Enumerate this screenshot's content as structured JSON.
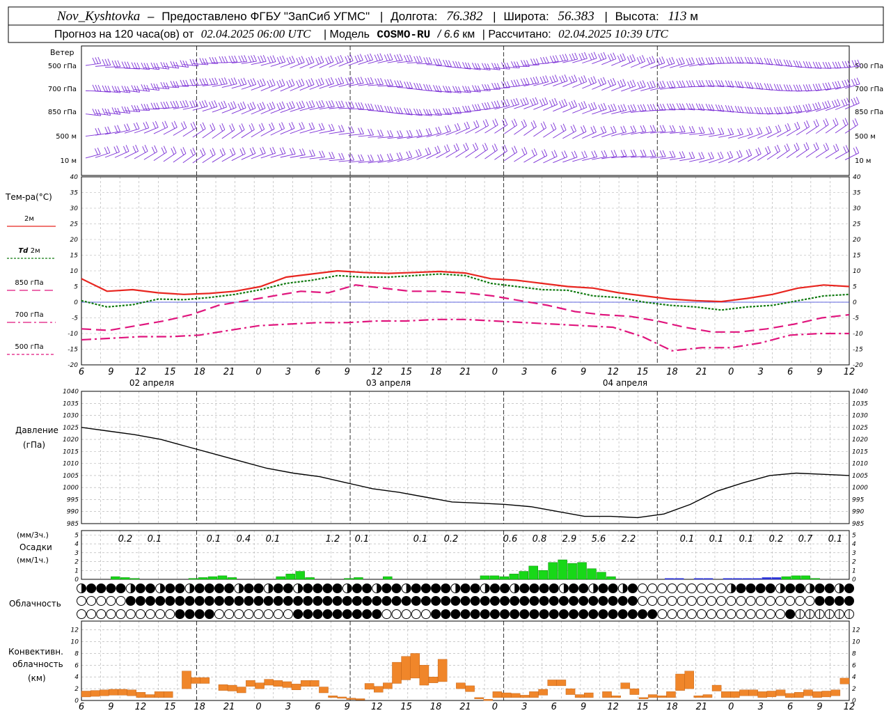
{
  "header": {
    "station": "Nov_Kyshtovka",
    "provider": "Предоставлено ФГБУ \"ЗапСиб УГМС\"",
    "lon_label": "Долгота:",
    "lon_value": "76.382",
    "lat_label": "Широта:",
    "lat_value": "56.383",
    "alt_label": "Высота:",
    "alt_value": "113",
    "alt_unit": "м",
    "forecast_text": "Прогноз на 120 часа(ов) от",
    "forecast_from": "02.04.2025 06:00 UTC",
    "model_label": "| Модель",
    "model_name": "COSMO-RU",
    "model_res": "/ 6.6",
    "model_res_unit": "км",
    "calc_label": "| Рассчитано:",
    "calc_time": "02.04.2025 10:39 UTC"
  },
  "wind": {
    "title": "Ветер",
    "levels": [
      "500 гПа",
      "700 гПа",
      "850 гПа",
      "500 м",
      "10 м"
    ],
    "color": "#7b2fd6"
  },
  "temperature": {
    "title": "Тем-ра(°C)",
    "legend": [
      {
        "label": "2м",
        "italic": "",
        "color": "#e8251f",
        "dash": ""
      },
      {
        "label": "2м",
        "italic": "Td",
        "color": "#107a10",
        "dash": "3,2"
      },
      {
        "label": "850 гПа",
        "italic": "",
        "color": "#e0157d",
        "dash": "12,6"
      },
      {
        "label": "700 гПа",
        "italic": "",
        "color": "#e0157d",
        "dash": "12,4,3,4"
      },
      {
        "label": "500 гПа",
        "italic": "",
        "color": "#e0157d",
        "dash": "4,3"
      }
    ],
    "yticks": [
      "40",
      "35",
      "30",
      "25",
      "20",
      "15",
      "10",
      "5",
      "0",
      "-5",
      "-10",
      "-15",
      "-20"
    ]
  },
  "time_axis": {
    "hour_labels": [
      "6",
      "9",
      "12",
      "15",
      "18",
      "21",
      "0",
      "3",
      "6",
      "9",
      "12",
      "15",
      "18",
      "21",
      "0",
      "3",
      "6",
      "9",
      "12",
      "15",
      "18",
      "21",
      "0",
      "3",
      "6",
      "9",
      "12"
    ],
    "dates": [
      "02 апреля",
      "03 апреля",
      "04 апреля"
    ]
  },
  "pressure": {
    "title": "Давление",
    "unit": "(гПа)",
    "yticks": [
      "1040",
      "1035",
      "1030",
      "1025",
      "1020",
      "1015",
      "1010",
      "1005",
      "1000",
      "995",
      "990",
      "985"
    ]
  },
  "precip": {
    "unit3h": "(мм/3ч.)",
    "title": "Осадки",
    "unit1h": "(мм/1ч.)",
    "yticks": [
      "5",
      "4",
      "3",
      "2",
      "1",
      "0"
    ],
    "sums": [
      "0.2",
      "0.1",
      "0.1",
      "0.4",
      "0.1",
      "1.2",
      "0.1",
      "0.1",
      "0.2",
      "0.6",
      "0.8",
      "2.9",
      "5.6",
      "2.2",
      "0.1",
      "0.1",
      "0.1",
      "0.2",
      "0.7",
      "0.1"
    ]
  },
  "cloud": {
    "title": "Облачность"
  },
  "conv": {
    "title1": "Конвективн.",
    "title2": "облачность",
    "unit": "(км)",
    "yticks": [
      "12",
      "10",
      "8",
      "6",
      "4",
      "2",
      "0"
    ]
  },
  "chart_data": {
    "type": "line",
    "x_hours": [
      6,
      9,
      12,
      15,
      18,
      21,
      24,
      27,
      30,
      33,
      36,
      39,
      42,
      45,
      48,
      51,
      54,
      57,
      60,
      63,
      66,
      69,
      72,
      75,
      78,
      81,
      84,
      87,
      90,
      93,
      96,
      99,
      102,
      105,
      108,
      111,
      114,
      117,
      120,
      123,
      126
    ],
    "series": [
      {
        "name": "2м",
        "values": [
          7.5,
          3.5,
          4,
          3,
          2.5,
          2.8,
          3.5,
          5,
          8,
          9,
          10,
          9.5,
          9.2,
          9.5,
          9.8,
          9.3,
          7.5,
          7,
          6,
          5,
          4.5,
          3,
          2,
          1,
          0.5,
          0.2,
          1.2,
          2.5,
          4.5,
          5.5,
          5
        ]
      },
      {
        "name": "Td 2м",
        "values": [
          0.5,
          -1.5,
          -0.8,
          1,
          0.8,
          1.5,
          2.5,
          4,
          6,
          7,
          8.5,
          8,
          8,
          8.5,
          9,
          8.5,
          6,
          5,
          4,
          3.8,
          2,
          1.5,
          0,
          -1,
          -1.5,
          -2.5,
          -1.5,
          -1,
          0.5,
          2,
          2.5
        ]
      },
      {
        "name": "850 гПа",
        "values": [
          -8.5,
          -9,
          -7.5,
          -6,
          -4,
          -1,
          0.5,
          2,
          3.5,
          3,
          5.5,
          4.5,
          3.5,
          3.5,
          3,
          2,
          0.5,
          -1,
          -3,
          -4,
          -4.5,
          -6,
          -8,
          -9.5,
          -9.5,
          -8.5,
          -7,
          -5,
          -4
        ]
      },
      {
        "name": "700 гПа",
        "values": [
          -12,
          -11.5,
          -11,
          -11,
          -10.5,
          -9,
          -7.5,
          -7,
          -6.5,
          -6.5,
          -6,
          -6,
          -5.5,
          -5.5,
          -6,
          -6.5,
          -7,
          -7.5,
          -8,
          -11,
          -15.5,
          -14.5,
          -14.5,
          -13,
          -10.5,
          -10,
          -10
        ]
      }
    ],
    "pressure": {
      "name": "Давление",
      "values": [
        1025,
        1023.5,
        1022,
        1020,
        1017,
        1014,
        1011,
        1008,
        1006,
        1004.5,
        1002,
        999.5,
        998,
        996,
        994,
        993.5,
        993,
        992,
        990,
        988,
        988,
        987.5,
        989,
        993,
        998.5,
        1002,
        1005,
        1006,
        1005.5,
        1005
      ]
    },
    "precip_1h": [
      0,
      0,
      0,
      0.3,
      0.2,
      0.1,
      0,
      0,
      0,
      0,
      0,
      0.1,
      0.2,
      0.3,
      0.4,
      0.2,
      0,
      0,
      0,
      0,
      0.3,
      0.6,
      0.9,
      0.2,
      0,
      0,
      0,
      0.1,
      0.2,
      0,
      0,
      0.3,
      0,
      0,
      0,
      0,
      0,
      0,
      0,
      0,
      0,
      0.4,
      0.4,
      0.3,
      0.6,
      0.9,
      1.5,
      1,
      1.9,
      2.2,
      1.8,
      1.9,
      1.2,
      0.8,
      0.3,
      0,
      0,
      0,
      0,
      0,
      0.1,
      0.1,
      0,
      0.1,
      0.1,
      0,
      0.1,
      0.1,
      0.1,
      0.1,
      0.2,
      0.2,
      0.3,
      0.4,
      0.4,
      0.1,
      0,
      0,
      0
    ],
    "conv_km": [
      1.6,
      1.7,
      1.8,
      1.9,
      1.9,
      1.8,
      1.4,
      1.0,
      1.5,
      1.5,
      0,
      5.0,
      3.9,
      3.9,
      0,
      2.7,
      2.6,
      2.3,
      3.4,
      3.0,
      3.6,
      3.4,
      3.2,
      2.8,
      3.4,
      3.4,
      2.3,
      0.8,
      0.6,
      0.4,
      0.3,
      2.9,
      2.4,
      3.0,
      6.5,
      7.5,
      8.0,
      6.0,
      4.0,
      7.0,
      0,
      3.0,
      2.5,
      0.5,
      0.2,
      1.5,
      1.3,
      1.2,
      0.9,
      1.5,
      1.9,
      3.5,
      3.5,
      2.0,
      1.0,
      1.3,
      0,
      1.5,
      0.8,
      3.0,
      2.0,
      0.5,
      1.0,
      0.8,
      1.5,
      4.5,
      5.0,
      0.8,
      1.0,
      2.6,
      1.5,
      1.5,
      1.8,
      1.8,
      1.5,
      1.6,
      1.8,
      1.2,
      1.4,
      1.8,
      1.5,
      1.6,
      1.8,
      3.8
    ]
  }
}
